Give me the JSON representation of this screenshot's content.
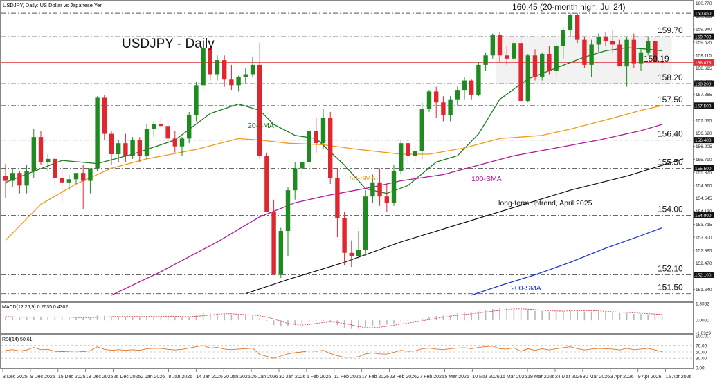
{
  "header": {
    "symbol_label": "USDJPY, Daily:  US Dollar vs Japanese Yen"
  },
  "chart_data": {
    "type": "candlestick",
    "title": "USDJPY - Daily",
    "price_axis": {
      "range": [
        151.25,
        160.85
      ],
      "ticks": [
        "160.770",
        "160.355",
        "159.940",
        "159.525",
        "159.110",
        "158.695",
        "158.280",
        "157.865",
        "157.450",
        "157.035",
        "156.620",
        "156.205",
        "155.790",
        "155.375",
        "154.960",
        "154.545",
        "154.130",
        "153.715",
        "153.300",
        "152.885",
        "152.470",
        "152.055",
        "151.640"
      ]
    },
    "current_price": {
      "value": "158.878",
      "color": "#e0303a"
    },
    "horizontal_levels": [
      {
        "value": 160.45,
        "label": "160.45 (20-month high, Jul 24)",
        "axis_tag": "160.450"
      },
      {
        "value": 159.7,
        "label": "159.70",
        "axis_tag": "159.700"
      },
      {
        "value": 158.2,
        "label": "158.20",
        "axis_tag": "158.200"
      },
      {
        "value": 157.5,
        "label": "157.50",
        "axis_tag": "157.500"
      },
      {
        "value": 156.4,
        "label": "156.40",
        "axis_tag": "156.400"
      },
      {
        "value": 155.5,
        "label": "155.50",
        "axis_tag": "155.500"
      },
      {
        "value": 154.0,
        "label": "154.00",
        "axis_tag": "154.000"
      },
      {
        "value": 152.1,
        "label": "152.10",
        "axis_tag": "152.100"
      },
      {
        "value": 151.5,
        "label": "151.50",
        "axis_tag": ""
      }
    ],
    "line_labels": {
      "level_15919": "159.19"
    },
    "x_labels": [
      "3 Dec 2025",
      "9 Dec 2025",
      "15 Dec 2025",
      "19 Dec 2025",
      "26 Dec 2025",
      "2 Jan 2026",
      "8 Jan 2026",
      "14 Jan 2026",
      "20 Jan 2026",
      "26 Jan 2026",
      "30 Jan 2026",
      "5 Feb 2026",
      "11 Feb 2026",
      "17 Feb 2026",
      "23 Feb 2026",
      "27 Feb 2026",
      "5 Mar 2026",
      "10 Mar 2026",
      "15 Mar 2026",
      "19 Mar 2026",
      "24 Mar 2026",
      "30 Mar 2026",
      "3 Apr 2026",
      "9 Apr 2026",
      "15 Apr 2026"
    ],
    "candles_ohlc": [
      [
        155.25,
        155.65,
        154.55,
        155.1
      ],
      [
        155.1,
        155.5,
        154.9,
        155.35
      ],
      [
        155.35,
        155.4,
        154.7,
        154.95
      ],
      [
        154.95,
        155.6,
        154.7,
        155.4
      ],
      [
        155.4,
        156.75,
        155.2,
        156.5
      ],
      [
        156.5,
        156.7,
        155.6,
        155.7
      ],
      [
        155.7,
        155.95,
        155.4,
        155.8
      ],
      [
        155.8,
        155.9,
        154.9,
        155.2
      ],
      [
        155.2,
        155.7,
        154.4,
        155.05
      ],
      [
        155.05,
        155.3,
        154.8,
        155.15
      ],
      [
        155.15,
        155.3,
        155.0,
        155.35
      ],
      [
        155.35,
        155.6,
        154.2,
        155.1
      ],
      [
        155.1,
        155.4,
        154.7,
        155.5
      ],
      [
        155.5,
        157.8,
        155.4,
        157.75
      ],
      [
        157.75,
        157.85,
        156.4,
        156.6
      ],
      [
        156.6,
        156.7,
        155.6,
        155.95
      ],
      [
        155.95,
        156.4,
        155.7,
        156.3
      ],
      [
        156.3,
        156.6,
        155.7,
        155.9
      ],
      [
        155.9,
        156.5,
        155.8,
        156.4
      ],
      [
        156.4,
        156.5,
        155.7,
        155.9
      ],
      [
        155.9,
        156.9,
        155.8,
        156.75
      ],
      [
        156.75,
        157.0,
        156.5,
        156.9
      ],
      [
        156.9,
        157.1,
        156.8,
        156.85
      ],
      [
        156.85,
        157.0,
        156.3,
        156.45
      ],
      [
        156.45,
        156.7,
        156.0,
        156.2
      ],
      [
        156.2,
        156.5,
        155.9,
        156.45
      ],
      [
        156.45,
        157.3,
        156.3,
        157.2
      ],
      [
        157.2,
        158.25,
        157.0,
        158.15
      ],
      [
        158.15,
        159.45,
        158.0,
        159.35
      ],
      [
        159.35,
        159.4,
        158.3,
        158.5
      ],
      [
        158.5,
        159.1,
        158.3,
        158.95
      ],
      [
        158.95,
        159.1,
        158.1,
        158.35
      ],
      [
        158.35,
        158.8,
        158.0,
        158.15
      ],
      [
        158.15,
        158.45,
        157.95,
        158.4
      ],
      [
        158.4,
        158.7,
        158.2,
        158.5
      ],
      [
        158.5,
        159.05,
        158.4,
        158.8
      ],
      [
        158.8,
        159.5,
        155.8,
        155.9
      ],
      [
        155.9,
        156.0,
        154.4,
        154.1
      ],
      [
        154.1,
        154.5,
        152.1,
        152.1
      ],
      [
        152.1,
        153.6,
        152.0,
        153.5
      ],
      [
        153.5,
        154.9,
        152.7,
        154.8
      ],
      [
        154.8,
        155.7,
        154.5,
        155.5
      ],
      [
        155.5,
        155.8,
        155.2,
        155.7
      ],
      [
        155.7,
        156.8,
        155.4,
        156.7
      ],
      [
        156.7,
        157.1,
        156.0,
        156.3
      ],
      [
        156.3,
        157.4,
        156.1,
        157.1
      ],
      [
        157.1,
        157.3,
        155.0,
        155.2
      ],
      [
        155.2,
        155.5,
        153.3,
        153.9
      ],
      [
        153.9,
        154.1,
        152.4,
        152.8
      ],
      [
        152.8,
        153.2,
        152.35,
        152.7
      ],
      [
        152.7,
        153.5,
        152.6,
        152.9
      ],
      [
        152.9,
        154.8,
        152.7,
        154.6
      ],
      [
        154.6,
        155.3,
        154.4,
        155.05
      ],
      [
        155.05,
        155.5,
        154.3,
        154.6
      ],
      [
        154.6,
        155.0,
        154.1,
        154.4
      ],
      [
        154.4,
        155.6,
        154.3,
        155.4
      ],
      [
        155.4,
        156.4,
        155.3,
        156.3
      ],
      [
        156.3,
        156.45,
        155.6,
        155.9
      ],
      [
        155.9,
        156.2,
        155.7,
        156.05
      ],
      [
        156.05,
        157.6,
        155.8,
        157.4
      ],
      [
        157.4,
        158.0,
        157.3,
        157.95
      ],
      [
        157.95,
        158.1,
        157.1,
        157.6
      ],
      [
        157.6,
        157.8,
        157.0,
        157.2
      ],
      [
        157.2,
        157.8,
        157.0,
        157.7
      ],
      [
        157.7,
        158.1,
        157.5,
        158.0
      ],
      [
        158.0,
        158.4,
        157.7,
        158.3
      ],
      [
        158.3,
        158.35,
        157.7,
        157.85
      ],
      [
        157.85,
        158.9,
        157.8,
        158.8
      ],
      [
        158.8,
        159.2,
        158.6,
        159.1
      ],
      [
        159.1,
        159.8,
        159.0,
        159.75
      ],
      [
        159.75,
        159.85,
        158.9,
        159.1
      ],
      [
        159.1,
        159.4,
        158.8,
        159.0
      ],
      [
        159.0,
        159.6,
        158.9,
        159.5
      ],
      [
        159.5,
        159.75,
        157.6,
        157.65
      ],
      [
        157.65,
        159.15,
        157.6,
        159.1
      ],
      [
        159.1,
        159.3,
        158.3,
        158.4
      ],
      [
        158.4,
        159.2,
        158.3,
        159.15
      ],
      [
        159.15,
        159.4,
        158.5,
        158.6
      ],
      [
        158.6,
        159.5,
        158.4,
        159.4
      ],
      [
        159.4,
        160.0,
        159.0,
        159.9
      ],
      [
        159.9,
        160.45,
        159.7,
        160.4
      ],
      [
        160.4,
        160.45,
        159.5,
        159.6
      ],
      [
        159.6,
        159.7,
        158.7,
        158.8
      ],
      [
        158.8,
        159.6,
        158.4,
        159.45
      ],
      [
        159.45,
        159.8,
        159.2,
        159.7
      ],
      [
        159.7,
        159.85,
        159.4,
        159.55
      ],
      [
        159.55,
        159.9,
        159.2,
        159.45
      ],
      [
        159.45,
        159.6,
        158.9,
        158.75
      ],
      [
        158.75,
        159.7,
        158.1,
        159.6
      ],
      [
        159.6,
        159.8,
        158.7,
        158.85
      ],
      [
        158.85,
        159.3,
        158.6,
        159.2
      ],
      [
        159.2,
        159.7,
        159.1,
        159.55
      ],
      [
        159.55,
        159.7,
        158.9,
        158.9
      ],
      [
        158.9,
        159.1,
        158.7,
        158.87
      ]
    ],
    "indicators": [
      {
        "name": "20-SMA",
        "color": "#1e7a1e",
        "points": [
          [
            0,
            155.05
          ],
          [
            8,
            155.75
          ],
          [
            13,
            155.65
          ],
          [
            18,
            155.95
          ],
          [
            24,
            156.4
          ],
          [
            29,
            157.25
          ],
          [
            33,
            157.55
          ],
          [
            36,
            157.35
          ],
          [
            38,
            156.9
          ],
          [
            41,
            156.55
          ],
          [
            44,
            156.45
          ],
          [
            48,
            155.6
          ],
          [
            51,
            154.85
          ],
          [
            54,
            154.7
          ],
          [
            57,
            154.95
          ],
          [
            61,
            155.7
          ],
          [
            64,
            155.9
          ],
          [
            67,
            156.6
          ],
          [
            70,
            157.7
          ],
          [
            74,
            158.35
          ],
          [
            78,
            158.7
          ],
          [
            82,
            159.05
          ],
          [
            85,
            159.25
          ],
          [
            88,
            159.35
          ],
          [
            91,
            159.3
          ],
          [
            93,
            159.25
          ]
        ]
      },
      {
        "name": "50-SMA",
        "color": "#f09a1a",
        "points": [
          [
            0,
            153.2
          ],
          [
            5,
            154.35
          ],
          [
            10,
            155.0
          ],
          [
            15,
            155.5
          ],
          [
            20,
            155.8
          ],
          [
            27,
            156.1
          ],
          [
            33,
            156.45
          ],
          [
            36,
            156.4
          ],
          [
            40,
            156.3
          ],
          [
            45,
            156.25
          ],
          [
            50,
            156.1
          ],
          [
            56,
            155.95
          ],
          [
            60,
            155.95
          ],
          [
            65,
            156.15
          ],
          [
            70,
            156.45
          ],
          [
            76,
            156.55
          ],
          [
            80,
            156.75
          ],
          [
            86,
            157.1
          ],
          [
            90,
            157.35
          ],
          [
            93,
            157.5
          ]
        ]
      },
      {
        "name": "100-SMA",
        "color": "#b01a9a",
        "points": [
          [
            15,
            151.45
          ],
          [
            22,
            152.2
          ],
          [
            30,
            153.15
          ],
          [
            36,
            153.95
          ],
          [
            41,
            154.4
          ],
          [
            46,
            154.65
          ],
          [
            52,
            154.9
          ],
          [
            56,
            155.1
          ],
          [
            62,
            155.3
          ],
          [
            67,
            155.6
          ],
          [
            72,
            155.9
          ],
          [
            78,
            156.15
          ],
          [
            84,
            156.4
          ],
          [
            90,
            156.7
          ],
          [
            93,
            156.9
          ]
        ]
      },
      {
        "name": "200-SMA",
        "color": "#1c3ccf",
        "points": [
          [
            66,
            151.45
          ],
          [
            70,
            151.75
          ],
          [
            75,
            152.1
          ],
          [
            80,
            152.5
          ],
          [
            85,
            152.95
          ],
          [
            90,
            153.35
          ],
          [
            93,
            153.6
          ]
        ]
      },
      {
        "name": "long-term uptrend, April 2025",
        "color": "#111111",
        "points": [
          [
            34,
            151.5
          ],
          [
            40,
            151.95
          ],
          [
            48,
            152.5
          ],
          [
            56,
            153.15
          ],
          [
            64,
            153.7
          ],
          [
            72,
            154.25
          ],
          [
            80,
            154.8
          ],
          [
            88,
            155.25
          ],
          [
            96,
            155.8
          ]
        ]
      }
    ],
    "rect_zone": {
      "from": 70,
      "to": 93,
      "low": 158.2,
      "high": 159.7
    },
    "macd": {
      "label": "MACD(12,26,9) 0.2635 0.4302",
      "ticks": [
        "1.3562",
        "0.0000",
        "-1.0329"
      ],
      "range": [
        -1.05,
        1.4
      ],
      "histogram": [
        0.3,
        0.25,
        0.2,
        0.22,
        0.3,
        0.3,
        0.28,
        0.25,
        0.22,
        0.2,
        0.2,
        0.18,
        0.2,
        0.38,
        0.35,
        0.3,
        0.3,
        0.28,
        0.3,
        0.28,
        0.32,
        0.35,
        0.35,
        0.32,
        0.28,
        0.25,
        0.3,
        0.42,
        0.58,
        0.55,
        0.55,
        0.5,
        0.42,
        0.4,
        0.4,
        0.4,
        0.18,
        -0.1,
        -0.4,
        -0.5,
        -0.45,
        -0.35,
        -0.25,
        -0.15,
        -0.1,
        -0.05,
        -0.15,
        -0.4,
        -0.6,
        -0.7,
        -0.7,
        -0.55,
        -0.45,
        -0.4,
        -0.35,
        -0.25,
        -0.1,
        -0.05,
        0.0,
        0.15,
        0.3,
        0.35,
        0.38,
        0.45,
        0.55,
        0.6,
        0.6,
        0.7,
        0.8,
        0.9,
        0.95,
        0.95,
        0.95,
        0.8,
        0.8,
        0.75,
        0.75,
        0.7,
        0.7,
        0.75,
        0.85,
        0.8,
        0.7,
        0.7,
        0.7,
        0.65,
        0.62,
        0.58,
        0.58,
        0.52,
        0.5,
        0.48,
        0.42,
        0.38
      ],
      "signal_color": "#e0303a",
      "hist_color": "#b8b8b8"
    },
    "rsi": {
      "label": "RSI(14) 50.61",
      "ticks": [
        "100.00",
        "70.00",
        "50.00",
        "30.00",
        "0.00"
      ],
      "range": [
        0,
        100
      ],
      "color": "#e07020",
      "values": [
        55,
        57,
        53,
        56,
        64,
        57,
        58,
        52,
        51,
        52,
        53,
        51,
        54,
        66,
        58,
        55,
        57,
        55,
        57,
        55,
        60,
        61,
        61,
        58,
        56,
        58,
        62,
        66,
        70,
        62,
        64,
        59,
        57,
        59,
        60,
        62,
        42,
        36,
        30,
        37,
        44,
        48,
        50,
        54,
        52,
        55,
        45,
        38,
        33,
        33,
        35,
        44,
        47,
        44,
        43,
        49,
        55,
        52,
        53,
        60,
        62,
        59,
        57,
        60,
        62,
        63,
        60,
        64,
        66,
        68,
        60,
        59,
        63,
        52,
        60,
        55,
        60,
        56,
        60,
        63,
        66,
        60,
        56,
        59,
        61,
        60,
        59,
        56,
        61,
        57,
        59,
        61,
        56,
        50.61
      ]
    }
  }
}
